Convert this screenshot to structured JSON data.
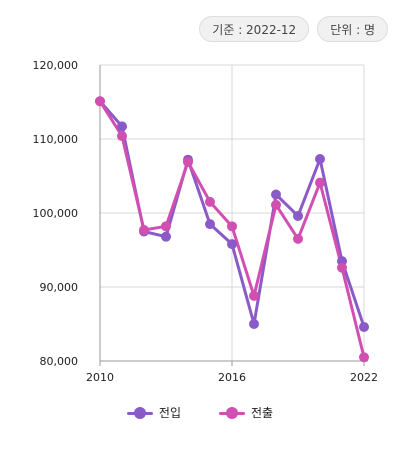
{
  "badges": {
    "basis": "기준 : 2022-12",
    "unit": "단위 : 명"
  },
  "colors": {
    "inflow": "#8a5ac8",
    "outflow": "#d14fb1",
    "grid": "#d9d9d9",
    "axis": "#999999"
  },
  "chart_data": {
    "type": "line",
    "x": [
      2010,
      2011,
      2012,
      2013,
      2014,
      2015,
      2016,
      2017,
      2018,
      2019,
      2020,
      2021,
      2022
    ],
    "xticks": [
      "2010",
      "2016",
      "2022"
    ],
    "yticks": [
      "80,000",
      "90,000",
      "100,000",
      "110,000",
      "120,000"
    ],
    "ylim": [
      80000,
      120000
    ],
    "xlim": [
      2010,
      2022
    ],
    "grid": true,
    "legend_position": "bottom-center",
    "series": [
      {
        "name": "전입",
        "values": [
          115100,
          111700,
          97500,
          96800,
          107200,
          98500,
          95800,
          85000,
          102500,
          99600,
          107300,
          93500,
          84600
        ]
      },
      {
        "name": "전출",
        "values": [
          115100,
          110400,
          97700,
          98200,
          106900,
          101500,
          98200,
          88800,
          101100,
          96500,
          104100,
          92600,
          80500
        ]
      }
    ]
  }
}
